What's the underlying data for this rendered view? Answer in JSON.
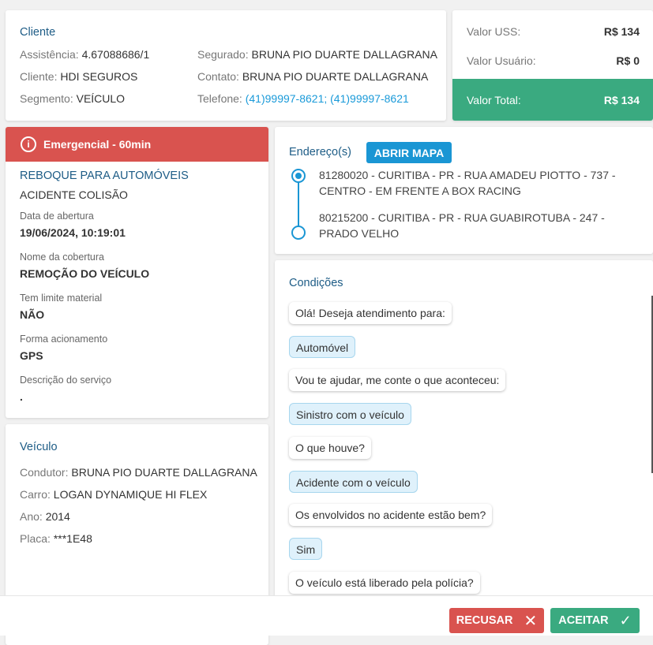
{
  "cliente": {
    "title": "Cliente",
    "assistencia_label": "Assistência:",
    "assistencia": "4.67088686/1",
    "cliente_label": "Cliente:",
    "cliente": "HDI SEGUROS",
    "segmento_label": "Segmento:",
    "segmento": "VEÍCULO",
    "segurado_label": "Segurado:",
    "segurado": "BRUNA PIO DUARTE DALLAGRANA",
    "contato_label": "Contato:",
    "contato": "BRUNA PIO DUARTE DALLAGRANA",
    "telefone_label": "Telefone:",
    "telefone": "(41)99997-8621; (41)99997-8621"
  },
  "valores": {
    "uss_label": "Valor USS:",
    "uss": "R$ 134",
    "usuario_label": "Valor Usuário:",
    "usuario": "R$ 0",
    "total_label": "Valor Total:",
    "total": "R$ 134",
    "total_color": "#3aaa80"
  },
  "servico": {
    "badge": "Emergencial - 60min",
    "badge_color": "#d9534f",
    "tipo": "REBOQUE PARA AUTOMÓVEIS",
    "motivo": "ACIDENTE COLISÃO",
    "fields": [
      {
        "label": "Data de abertura",
        "value": "19/06/2024, 10:19:01"
      },
      {
        "label": "Nome da cobertura",
        "value": "REMOÇÃO DO VEÍCULO"
      },
      {
        "label": "Tem limite material",
        "value": "NÃO"
      },
      {
        "label": "Forma acionamento",
        "value": "GPS"
      },
      {
        "label": "Descrição do serviço",
        "value": "."
      }
    ]
  },
  "veiculo": {
    "title": "Veículo",
    "condutor_label": "Condutor:",
    "condutor": "BRUNA PIO DUARTE DALLAGRANA",
    "carro_label": "Carro:",
    "carro": "LOGAN DYNAMIQUE HI FLEX",
    "ano_label": "Ano:",
    "ano": "2014",
    "placa_label": "Placa:",
    "placa": "***1E48"
  },
  "enderecos": {
    "title": "Endereço(s)",
    "map_button": "ABRIR MAPA",
    "items": [
      "81280020 - CURITIBA - PR - RUA AMADEU PIOTTO - 737 - CENTRO - EM FRENTE A BOX RACING",
      "80215200 - CURITIBA - PR - RUA GUABIROTUBA - 247 - PRADO VELHO"
    ]
  },
  "condicoes": {
    "title": "Condições",
    "messages": [
      {
        "text": "Olá! Deseja atendimento para:",
        "user": false
      },
      {
        "text": "Automóvel",
        "user": true
      },
      {
        "text": "Vou te ajudar, me conte o que aconteceu:",
        "user": false
      },
      {
        "text": "Sinistro com o veículo",
        "user": true
      },
      {
        "text": "O que houve?",
        "user": false
      },
      {
        "text": "Acidente com o veículo",
        "user": true
      },
      {
        "text": "Os envolvidos no acidente estão bem?",
        "user": false
      },
      {
        "text": "Sim",
        "user": true
      },
      {
        "text": "O veículo está liberado pela polícia?",
        "user": false
      }
    ]
  },
  "footer": {
    "recusar": "RECUSAR",
    "aceitar": "ACEITAR"
  }
}
